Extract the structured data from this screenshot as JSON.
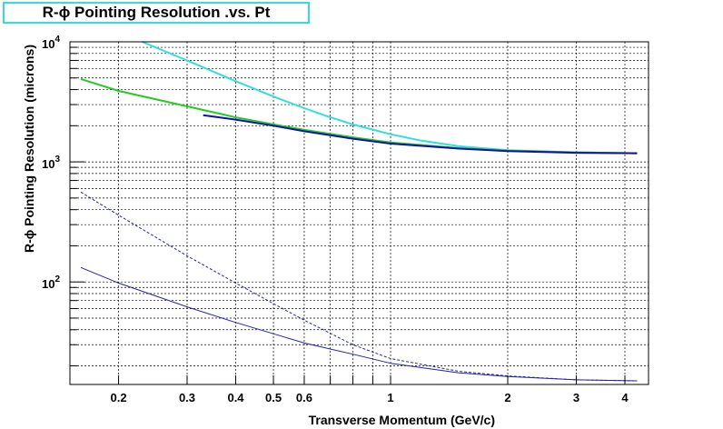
{
  "chart_data": {
    "type": "line",
    "title": "R-ϕ Pointing Resolution .vs. Pt",
    "xlabel": "Transverse Momentum (GeV/c)",
    "ylabel": "R-ϕ Pointing Resolution (microns)",
    "xscale": "log",
    "yscale": "log",
    "xlim": [
      0.15,
      4.6
    ],
    "ylim": [
      14,
      10000
    ],
    "grid": true,
    "x_ticks": [
      {
        "value": 0.2,
        "label": "0.2"
      },
      {
        "value": 0.3,
        "label": "0.3"
      },
      {
        "value": 0.4,
        "label": "0.4"
      },
      {
        "value": 0.5,
        "label": "0.5"
      },
      {
        "value": 0.6,
        "label": "0.6"
      },
      {
        "value": 1,
        "label": "1"
      },
      {
        "value": 2,
        "label": "2"
      },
      {
        "value": 3,
        "label": "3"
      },
      {
        "value": 4,
        "label": "4"
      }
    ],
    "x_minor_grid": [
      0.7,
      0.8,
      0.9
    ],
    "y_ticks": [
      {
        "value": 100,
        "base": "10",
        "exp": "2"
      },
      {
        "value": 1000,
        "base": "10",
        "exp": "3"
      },
      {
        "value": 10000,
        "base": "10",
        "exp": "4"
      }
    ],
    "y_minor_grid": [
      20,
      30,
      40,
      50,
      60,
      70,
      80,
      90,
      200,
      300,
      400,
      500,
      600,
      700,
      800,
      900,
      2000,
      3000,
      4000,
      5000,
      6000,
      7000,
      8000,
      9000
    ],
    "series": [
      {
        "color": "#33dddd",
        "style": "solid",
        "width": 2,
        "x": [
          0.23,
          0.3,
          0.4,
          0.5,
          0.6,
          0.7,
          0.8,
          1.0,
          1.2,
          1.5,
          2.0,
          3.0,
          4.3
        ],
        "y": [
          10000,
          7000,
          4700,
          3500,
          2800,
          2350,
          2050,
          1700,
          1500,
          1350,
          1250,
          1200,
          1180
        ]
      },
      {
        "color": "#22cc22",
        "style": "solid",
        "width": 2,
        "x": [
          0.16,
          0.2,
          0.3,
          0.4,
          0.5,
          0.6,
          0.8,
          1.0,
          1.5,
          2.0,
          3.0,
          4.3
        ],
        "y": [
          4900,
          3900,
          2900,
          2350,
          2050,
          1850,
          1600,
          1450,
          1300,
          1240,
          1200,
          1180
        ]
      },
      {
        "color": "#1111aa",
        "style": "solid",
        "width": 2,
        "x": [
          0.33,
          0.4,
          0.5,
          0.6,
          0.8,
          1.0,
          1.5,
          2.0,
          3.0,
          4.3
        ],
        "y": [
          2450,
          2250,
          2000,
          1800,
          1560,
          1420,
          1290,
          1230,
          1190,
          1180
        ]
      },
      {
        "color": "#2222aa",
        "style": "dashed",
        "width": 1,
        "x": [
          0.16,
          0.2,
          0.3,
          0.4,
          0.5,
          0.6,
          0.8,
          1.0,
          1.5,
          2.0,
          3.0,
          4.3
        ],
        "y": [
          560,
          360,
          165,
          98,
          66,
          48,
          30,
          23,
          18,
          16.5,
          15.3,
          15
        ]
      },
      {
        "color": "#2222aa",
        "style": "solid",
        "width": 1,
        "x": [
          0.16,
          0.2,
          0.3,
          0.4,
          0.5,
          0.6,
          0.8,
          1.0,
          1.5,
          2.0,
          3.0,
          4.3
        ],
        "y": [
          132,
          98,
          62,
          46,
          37,
          31,
          25,
          21,
          17.5,
          16.3,
          15.3,
          15
        ]
      }
    ]
  }
}
